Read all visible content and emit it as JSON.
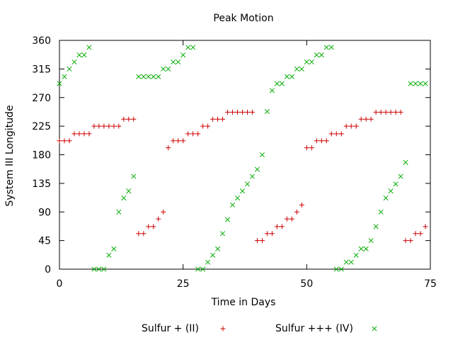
{
  "chart_data": {
    "type": "scatter",
    "title": "Peak Motion",
    "xlabel": "Time in Days",
    "ylabel": "System III Longitude",
    "xlim": [
      0,
      75
    ],
    "ylim": [
      0,
      360
    ],
    "xticks": [
      0,
      25,
      50,
      75
    ],
    "yticks": [
      0,
      45,
      90,
      135,
      180,
      225,
      270,
      315,
      360
    ],
    "grid": false,
    "legend_position": "bottom",
    "series": [
      {
        "name": "Sulfur + (II)",
        "color": "#cc0000",
        "marker": "plus",
        "points": [
          [
            0,
            202
          ],
          [
            1,
            202
          ],
          [
            2,
            202
          ],
          [
            3,
            213
          ],
          [
            4,
            213
          ],
          [
            5,
            213
          ],
          [
            6,
            213
          ],
          [
            7,
            225
          ],
          [
            8,
            225
          ],
          [
            9,
            225
          ],
          [
            10,
            225
          ],
          [
            11,
            225
          ],
          [
            12,
            225
          ],
          [
            13,
            236
          ],
          [
            14,
            236
          ],
          [
            15,
            236
          ],
          [
            16,
            56
          ],
          [
            17,
            56
          ],
          [
            18,
            67
          ],
          [
            19,
            67
          ],
          [
            20,
            79
          ],
          [
            21,
            90
          ],
          [
            22,
            191
          ],
          [
            23,
            202
          ],
          [
            24,
            202
          ],
          [
            25,
            202
          ],
          [
            26,
            213
          ],
          [
            27,
            213
          ],
          [
            28,
            213
          ],
          [
            29,
            225
          ],
          [
            30,
            225
          ],
          [
            31,
            236
          ],
          [
            32,
            236
          ],
          [
            33,
            236
          ],
          [
            34,
            247
          ],
          [
            35,
            247
          ],
          [
            36,
            247
          ],
          [
            37,
            247
          ],
          [
            38,
            247
          ],
          [
            39,
            247
          ],
          [
            40,
            45
          ],
          [
            41,
            45
          ],
          [
            42,
            56
          ],
          [
            43,
            56
          ],
          [
            44,
            67
          ],
          [
            45,
            67
          ],
          [
            46,
            79
          ],
          [
            47,
            79
          ],
          [
            48,
            90
          ],
          [
            49,
            101
          ],
          [
            50,
            191
          ],
          [
            51,
            191
          ],
          [
            52,
            202
          ],
          [
            53,
            202
          ],
          [
            54,
            202
          ],
          [
            55,
            213
          ],
          [
            56,
            213
          ],
          [
            57,
            213
          ],
          [
            58,
            225
          ],
          [
            59,
            225
          ],
          [
            60,
            225
          ],
          [
            61,
            236
          ],
          [
            62,
            236
          ],
          [
            63,
            236
          ],
          [
            64,
            247
          ],
          [
            65,
            247
          ],
          [
            66,
            247
          ],
          [
            67,
            247
          ],
          [
            68,
            247
          ],
          [
            69,
            247
          ],
          [
            70,
            45
          ],
          [
            71,
            45
          ],
          [
            72,
            56
          ],
          [
            73,
            56
          ],
          [
            74,
            67
          ]
        ]
      },
      {
        "name": "Sulfur +++ (IV)",
        "color": "#00aa00",
        "marker": "x",
        "points": [
          [
            0,
            292
          ],
          [
            1,
            303
          ],
          [
            2,
            315
          ],
          [
            3,
            326
          ],
          [
            4,
            337
          ],
          [
            5,
            337
          ],
          [
            6,
            349
          ],
          [
            7,
            0
          ],
          [
            8,
            0
          ],
          [
            9,
            0
          ],
          [
            10,
            22
          ],
          [
            11,
            32
          ],
          [
            12,
            90
          ],
          [
            13,
            112
          ],
          [
            14,
            123
          ],
          [
            15,
            146
          ],
          [
            16,
            303
          ],
          [
            17,
            303
          ],
          [
            18,
            303
          ],
          [
            19,
            303
          ],
          [
            20,
            303
          ],
          [
            21,
            315
          ],
          [
            22,
            315
          ],
          [
            23,
            326
          ],
          [
            24,
            326
          ],
          [
            25,
            337
          ],
          [
            26,
            349
          ],
          [
            27,
            349
          ],
          [
            28,
            0
          ],
          [
            29,
            0
          ],
          [
            30,
            11
          ],
          [
            31,
            22
          ],
          [
            32,
            32
          ],
          [
            33,
            56
          ],
          [
            34,
            78
          ],
          [
            35,
            101
          ],
          [
            36,
            112
          ],
          [
            37,
            123
          ],
          [
            38,
            134
          ],
          [
            39,
            146
          ],
          [
            40,
            157
          ],
          [
            41,
            180
          ],
          [
            42,
            248
          ],
          [
            43,
            281
          ],
          [
            44,
            292
          ],
          [
            45,
            292
          ],
          [
            46,
            303
          ],
          [
            47,
            303
          ],
          [
            48,
            315
          ],
          [
            49,
            315
          ],
          [
            50,
            326
          ],
          [
            51,
            326
          ],
          [
            52,
            337
          ],
          [
            53,
            337
          ],
          [
            54,
            349
          ],
          [
            55,
            349
          ],
          [
            56,
            0
          ],
          [
            57,
            0
          ],
          [
            58,
            11
          ],
          [
            59,
            11
          ],
          [
            60,
            22
          ],
          [
            61,
            32
          ],
          [
            62,
            32
          ],
          [
            63,
            45
          ],
          [
            64,
            67
          ],
          [
            65,
            90
          ],
          [
            66,
            112
          ],
          [
            67,
            123
          ],
          [
            68,
            134
          ],
          [
            69,
            146
          ],
          [
            70,
            168
          ],
          [
            71,
            292
          ],
          [
            72,
            292
          ],
          [
            73,
            292
          ],
          [
            74,
            292
          ]
        ]
      }
    ]
  }
}
